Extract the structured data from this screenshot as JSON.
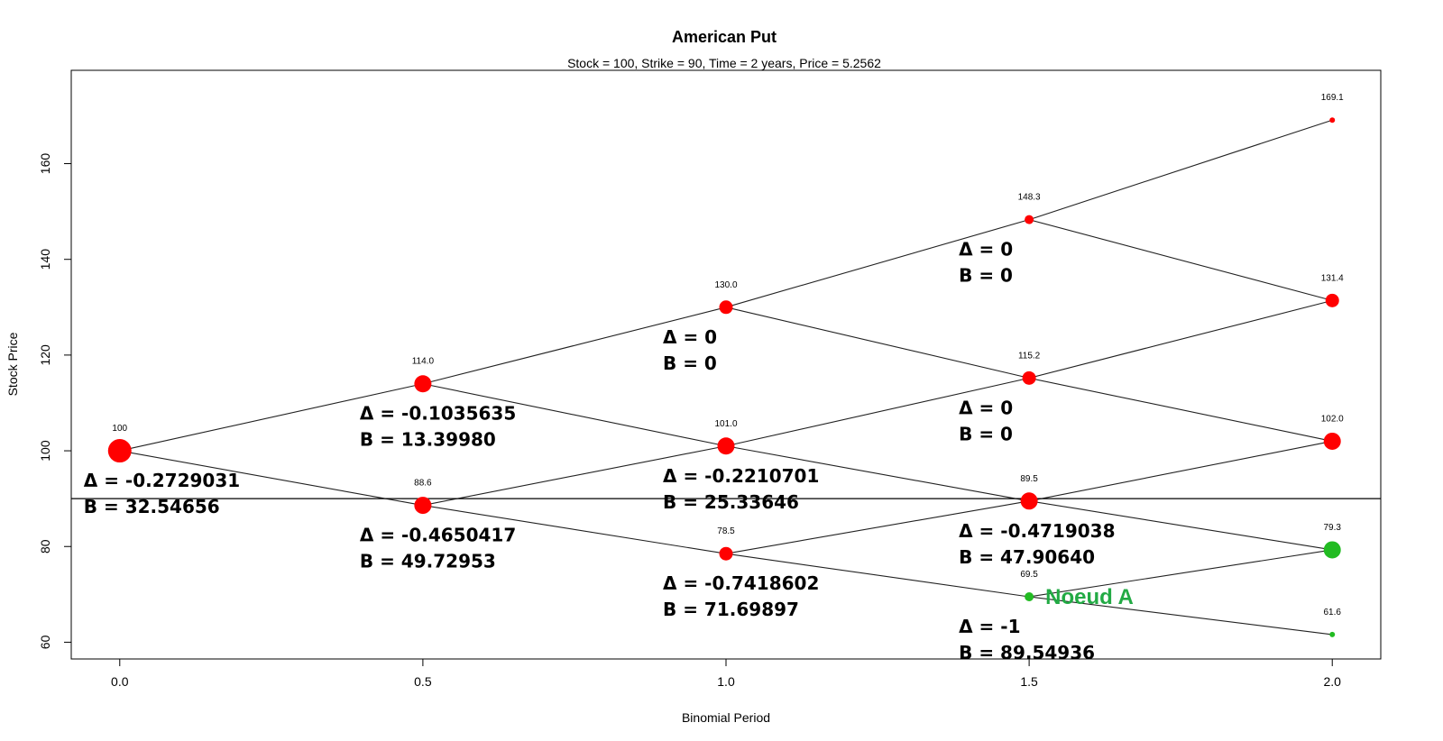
{
  "chart_data": {
    "type": "scatter",
    "title": "American Put",
    "subtitle": "Stock = 100, Strike = 90, Time = 2 years, Price = 5.2562",
    "xlabel": "Binomial Period",
    "ylabel": "Stock Price",
    "xlim": [
      -0.08,
      2.08
    ],
    "ylim": [
      56.5,
      179.5
    ],
    "x_ticks": [
      0.0,
      0.5,
      1.0,
      1.5,
      2.0
    ],
    "x_tick_labels": [
      "0.0",
      "0.5",
      "1.0",
      "1.5",
      "2.0"
    ],
    "y_ticks": [
      60,
      80,
      100,
      120,
      140,
      160
    ],
    "y_tick_labels": [
      "60",
      "80",
      "100",
      "120",
      "140",
      "160"
    ],
    "strike_line": 90,
    "colors": {
      "exercise_no": "#ff0000",
      "exercise_yes": "#22bb22",
      "line": "#000000",
      "noeud": "#22aa44"
    },
    "nodes": [
      {
        "id": "n00",
        "x": 0.0,
        "y": 100.0,
        "label": "100",
        "color": "red",
        "size": 4
      },
      {
        "id": "n10",
        "x": 0.5,
        "y": 114.0,
        "label": "114.0",
        "color": "red",
        "size": 3
      },
      {
        "id": "n11",
        "x": 0.5,
        "y": 88.6,
        "label": "88.6",
        "color": "red",
        "size": 3
      },
      {
        "id": "n20",
        "x": 1.0,
        "y": 130.0,
        "label": "130.0",
        "color": "red",
        "size": 2
      },
      {
        "id": "n21",
        "x": 1.0,
        "y": 101.0,
        "label": "101.0",
        "color": "red",
        "size": 3
      },
      {
        "id": "n22",
        "x": 1.0,
        "y": 78.5,
        "label": "78.5",
        "color": "red",
        "size": 2
      },
      {
        "id": "n30",
        "x": 1.5,
        "y": 148.3,
        "label": "148.3",
        "color": "red",
        "size": 1
      },
      {
        "id": "n31",
        "x": 1.5,
        "y": 115.2,
        "label": "115.2",
        "color": "red",
        "size": 2
      },
      {
        "id": "n32",
        "x": 1.5,
        "y": 89.5,
        "label": "89.5",
        "color": "red",
        "size": 3
      },
      {
        "id": "n33",
        "x": 1.5,
        "y": 69.5,
        "label": "69.5",
        "color": "green",
        "size": 1
      },
      {
        "id": "n40",
        "x": 2.0,
        "y": 169.1,
        "label": "169.1",
        "color": "red",
        "size": 0
      },
      {
        "id": "n41",
        "x": 2.0,
        "y": 131.4,
        "label": "131.4",
        "color": "red",
        "size": 2
      },
      {
        "id": "n42",
        "x": 2.0,
        "y": 102.0,
        "label": "102.0",
        "color": "red",
        "size": 3
      },
      {
        "id": "n43",
        "x": 2.0,
        "y": 79.3,
        "label": "79.3",
        "color": "green",
        "size": 3
      },
      {
        "id": "n44",
        "x": 2.0,
        "y": 61.6,
        "label": "61.6",
        "color": "green",
        "size": 0
      }
    ],
    "edges": [
      [
        "n00",
        "n10"
      ],
      [
        "n00",
        "n11"
      ],
      [
        "n10",
        "n20"
      ],
      [
        "n10",
        "n21"
      ],
      [
        "n11",
        "n21"
      ],
      [
        "n11",
        "n22"
      ],
      [
        "n20",
        "n30"
      ],
      [
        "n20",
        "n31"
      ],
      [
        "n21",
        "n31"
      ],
      [
        "n21",
        "n32"
      ],
      [
        "n22",
        "n32"
      ],
      [
        "n22",
        "n33"
      ],
      [
        "n30",
        "n40"
      ],
      [
        "n30",
        "n41"
      ],
      [
        "n31",
        "n41"
      ],
      [
        "n31",
        "n42"
      ],
      [
        "n32",
        "n42"
      ],
      [
        "n32",
        "n43"
      ],
      [
        "n33",
        "n43"
      ],
      [
        "n33",
        "n44"
      ]
    ],
    "annotations": [
      {
        "node": "n00",
        "delta": "Δ = -0.2729031",
        "b": "B = 32.54656"
      },
      {
        "node": "n10",
        "delta": "Δ = -0.1035635",
        "b": "B = 13.39980"
      },
      {
        "node": "n11",
        "delta": "Δ = -0.4650417",
        "b": "B = 49.72953"
      },
      {
        "node": "n20",
        "delta": "Δ = 0",
        "b": "B = 0"
      },
      {
        "node": "n21",
        "delta": "Δ = -0.2210701",
        "b": "B = 25.33646"
      },
      {
        "node": "n22",
        "delta": "Δ = -0.7418602",
        "b": "B = 71.69897"
      },
      {
        "node": "n30",
        "delta": "Δ = 0",
        "b": "B = 0"
      },
      {
        "node": "n31",
        "delta": "Δ = 0",
        "b": "B = 0"
      },
      {
        "node": "n32",
        "delta": "Δ = -0.4719038",
        "b": "B = 47.90640"
      },
      {
        "node": "n33",
        "delta": "Δ = -1",
        "b": "B = 89.54936"
      }
    ],
    "noeud_label": {
      "node": "n33",
      "text": "Noeud A"
    }
  }
}
